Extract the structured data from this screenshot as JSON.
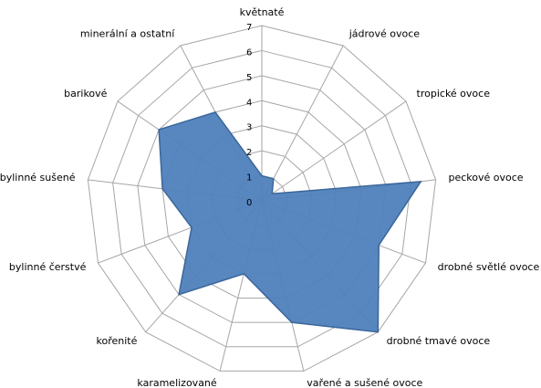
{
  "chart_data": {
    "type": "radar",
    "categories": [
      "květnaté",
      "jádrové ovoce",
      "tropické ovoce",
      "peckové ovoce",
      "drobné světlé ovoce",
      "drobné tmavé ovoce",
      "vařené a sušené ovoce",
      "karamelizované",
      "kořenité",
      "bylinné čerstvé",
      "bylinné sušené",
      "barikové",
      "minerální a ostatní"
    ],
    "values": [
      1,
      1,
      0.5,
      6.4,
      5,
      7,
      5,
      3,
      5,
      3,
      4,
      5,
      4
    ],
    "color": "#4f81bd",
    "ylim": [
      0,
      7
    ],
    "yticks": [
      0,
      1,
      2,
      3,
      4,
      5,
      6,
      7
    ],
    "grid": true
  }
}
